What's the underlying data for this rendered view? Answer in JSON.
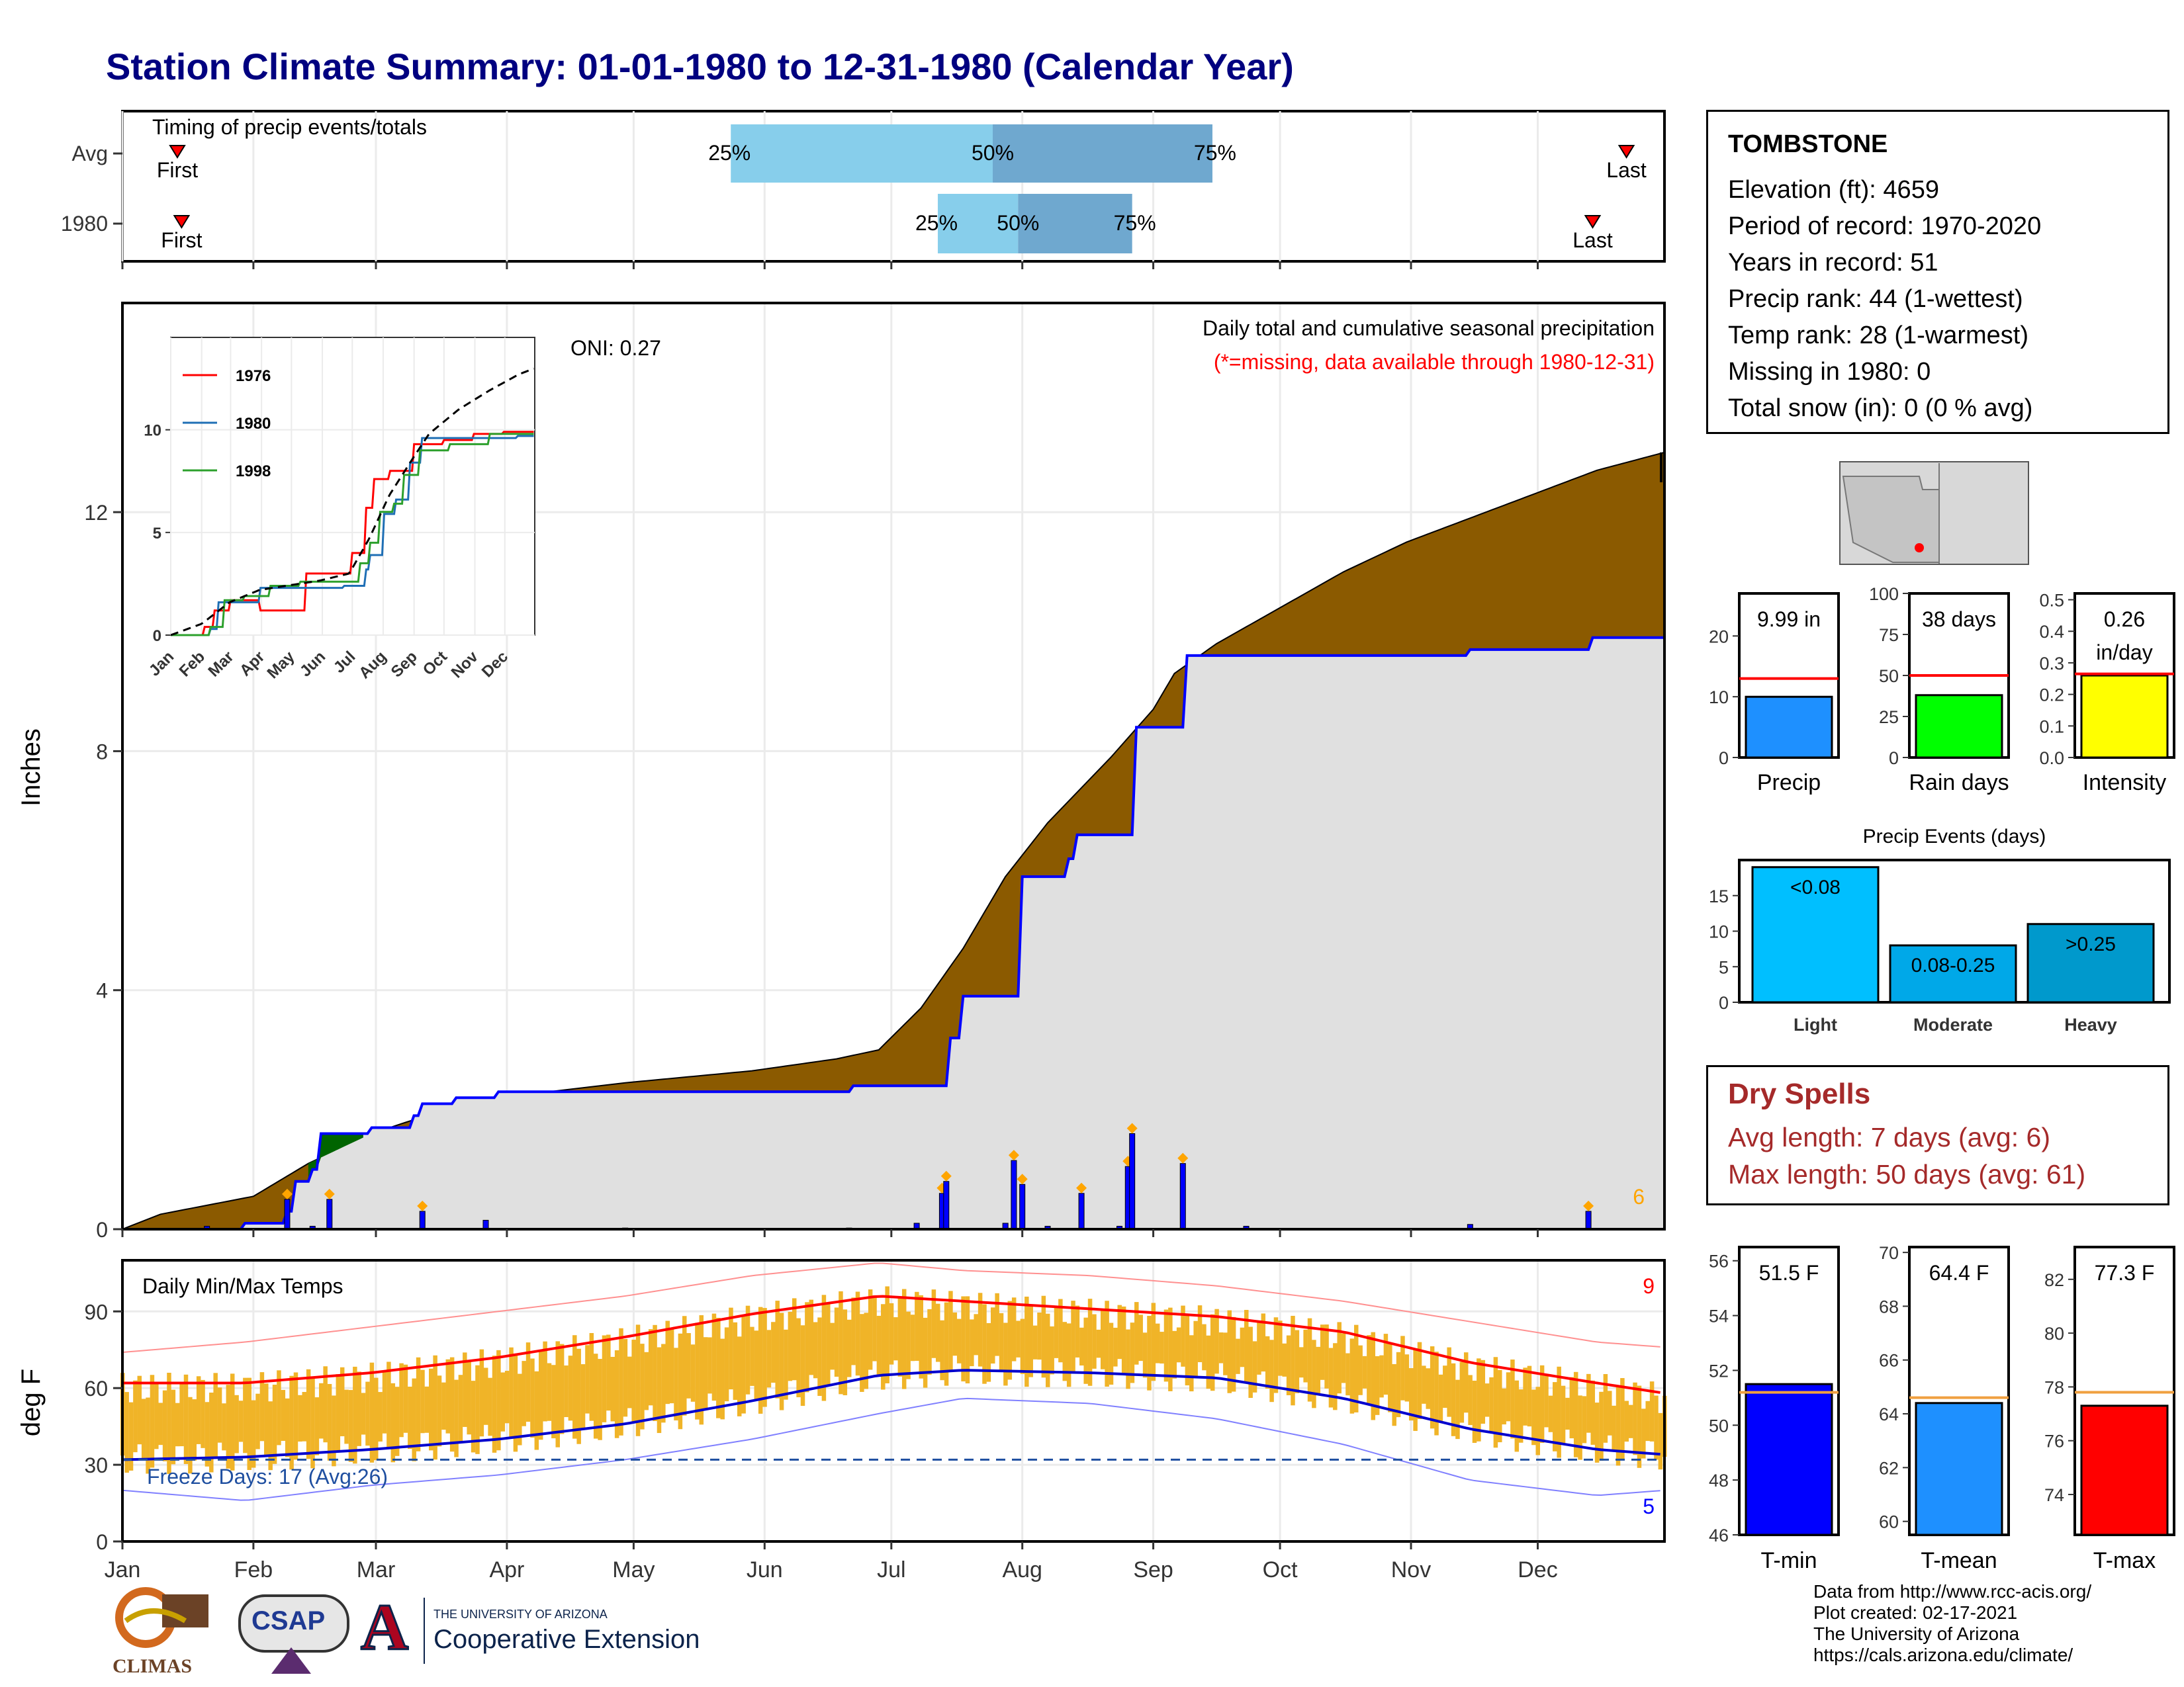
{
  "title": "Station Climate Summary: 01-01-1980 to 12-31-1980 (Calendar Year)",
  "station": {
    "name": "TOMBSTONE",
    "lines": [
      "Elevation (ft): 4659",
      "Period of record: 1970-2020",
      "Years in record: 51",
      "Precip rank: 44 (1-wettest)",
      "Temp rank: 28 (1-warmest)",
      "Missing in 1980: 0",
      "Total snow (in): 0 (0 % avg)"
    ]
  },
  "dry_spells": {
    "title": "Dry Spells",
    "avg": "Avg length: 7 days (avg: 6)",
    "max": "Max length: 50 days (avg: 61)"
  },
  "credits": [
    "Data from http://www.rcc-acis.org/",
    "Plot created: 02-17-2021",
    "The University of Arizona",
    "https://cals.arizona.edu/climate/"
  ],
  "logos": {
    "climas": "CLIMAS",
    "csap": "CSAP",
    "ua_small": "THE UNIVERSITY OF ARIZONA",
    "ua_big": "Cooperative Extension"
  },
  "colors": {
    "title": "#000080",
    "precip_fill": "#8b5a00",
    "below_avg_fill": "#006400",
    "observed_fill": "#e0e0e0",
    "observed_line": "#0000ff",
    "daily_bars": "#0000ff",
    "timing_light": "#87ceeb",
    "timing_dark": "#6fa8cf",
    "temp_range": "#f0b428",
    "tmax_line": "#ff0000",
    "tmin_line": "#0000cd",
    "dry_spells": "#a52a2a"
  },
  "chart_data": [
    {
      "type": "bar",
      "id": "timing",
      "title": "Timing of precip events/totals",
      "categories": [
        "Avg",
        "1980"
      ],
      "x_axis": "day of year",
      "xlim": [
        1,
        366
      ],
      "rows": [
        {
          "label": "Avg",
          "first": 14,
          "p25": 145,
          "p50": 207,
          "p75": 259,
          "last": 357,
          "first_label": "First",
          "last_label": "Last",
          "p25_label": "25%",
          "p50_label": "50%",
          "p75_label": "75%"
        },
        {
          "label": "1980",
          "first": 15,
          "p25": 194,
          "p50": 213,
          "p75": 240,
          "last": 349,
          "first_label": "First",
          "last_label": "Last",
          "p25_label": "25%",
          "p50_label": "50%",
          "p75_label": "75%"
        }
      ]
    },
    {
      "type": "area",
      "id": "cumulative-precip",
      "title": "Daily total and cumulative seasonal precipitation",
      "subtitle": "(*=missing, data available through 1980-12-31)",
      "oni_label": "ONI: 0.27",
      "ylabel": "Inches",
      "ylim": [
        0,
        15.5
      ],
      "yticks": [
        0,
        4,
        8,
        12
      ],
      "x_axis": "day of year",
      "xlim": [
        1,
        366
      ],
      "xticks": [
        "Jan",
        "Feb",
        "Mar",
        "Apr",
        "May",
        "Jun",
        "Jul",
        "Aug",
        "Sep",
        "Oct",
        "Nov",
        "Dec"
      ],
      "count_label": "6",
      "series": [
        {
          "name": "average cumulative",
          "points": [
            [
              1,
              0
            ],
            [
              10,
              0.25
            ],
            [
              32,
              0.55
            ],
            [
              45,
              1.1
            ],
            [
              60,
              1.6
            ],
            [
              75,
              1.95
            ],
            [
              90,
              2.2
            ],
            [
              120,
              2.45
            ],
            [
              150,
              2.65
            ],
            [
              170,
              2.85
            ],
            [
              180,
              3.0
            ],
            [
              190,
              3.7
            ],
            [
              200,
              4.7
            ],
            [
              210,
              5.9
            ],
            [
              220,
              6.8
            ],
            [
              235,
              7.9
            ],
            [
              245,
              8.7
            ],
            [
              250,
              9.3
            ],
            [
              260,
              9.8
            ],
            [
              275,
              10.4
            ],
            [
              290,
              11.0
            ],
            [
              305,
              11.5
            ],
            [
              320,
              11.9
            ],
            [
              335,
              12.3
            ],
            [
              350,
              12.7
            ],
            [
              366,
              13.0
            ]
          ]
        },
        {
          "name": "1980",
          "points": [
            [
              1,
              0
            ],
            [
              30,
              0.1
            ],
            [
              40,
              0.3
            ],
            [
              42,
              0.8
            ],
            [
              46,
              1.0
            ],
            [
              48,
              1.6
            ],
            [
              60,
              1.7
            ],
            [
              70,
              1.9
            ],
            [
              72,
              2.1
            ],
            [
              80,
              2.2
            ],
            [
              90,
              2.3
            ],
            [
              120,
              2.3
            ],
            [
              150,
              2.3
            ],
            [
              170,
              2.3
            ],
            [
              174,
              2.4
            ],
            [
              195,
              2.4
            ],
            [
              197,
              3.2
            ],
            [
              200,
              3.9
            ],
            [
              212,
              3.9
            ],
            [
              214,
              5.9
            ],
            [
              225,
              6.2
            ],
            [
              227,
              6.6
            ],
            [
              239,
              6.6
            ],
            [
              241,
              8.4
            ],
            [
              252,
              8.4
            ],
            [
              253,
              9.6
            ],
            [
              320,
              9.7
            ],
            [
              348,
              9.7
            ],
            [
              349,
              9.9
            ],
            [
              366,
              9.9
            ]
          ]
        }
      ],
      "daily_values": [
        [
          21,
          0.05
        ],
        [
          40,
          0.5
        ],
        [
          46,
          0.05
        ],
        [
          50,
          0.5
        ],
        [
          72,
          0.3
        ],
        [
          87,
          0.15
        ],
        [
          120,
          0.02
        ],
        [
          173,
          0.02
        ],
        [
          189,
          0.1
        ],
        [
          195,
          0.6
        ],
        [
          196,
          0.8
        ],
        [
          210,
          0.1
        ],
        [
          212,
          1.15
        ],
        [
          214,
          0.75
        ],
        [
          220,
          0.05
        ],
        [
          228,
          0.6
        ],
        [
          237,
          0.05
        ],
        [
          239,
          1.05
        ],
        [
          240,
          1.6
        ],
        [
          252,
          1.1
        ],
        [
          267,
          0.05
        ],
        [
          320,
          0.08
        ],
        [
          348,
          0.3
        ]
      ]
    },
    {
      "type": "line",
      "id": "inset-cumulative",
      "yticks": [
        0,
        5,
        10
      ],
      "xticks": [
        "Jan",
        "Feb",
        "Mar",
        "Apr",
        "May",
        "Jun",
        "Jul",
        "Aug",
        "Sep",
        "Oct",
        "Nov",
        "Dec"
      ],
      "series": [
        {
          "name": "1976",
          "color": "#ff0000",
          "points": [
            [
              1,
              0
            ],
            [
              35,
              0.4
            ],
            [
              45,
              1.2
            ],
            [
              60,
              1.7
            ],
            [
              90,
              1.8
            ],
            [
              91,
              1.2
            ],
            [
              135,
              1.2
            ],
            [
              136,
              3.0
            ],
            [
              180,
              3.0
            ],
            [
              182,
              4.0
            ],
            [
              197,
              6.2
            ],
            [
              205,
              7.6
            ],
            [
              220,
              8.0
            ],
            [
              245,
              9.3
            ],
            [
              275,
              9.5
            ],
            [
              305,
              9.8
            ],
            [
              335,
              9.9
            ],
            [
              366,
              10.0
            ]
          ]
        },
        {
          "name": "1980",
          "color": "#1f6fb5",
          "points": [
            [
              1,
              0
            ],
            [
              40,
              0.3
            ],
            [
              48,
              1.6
            ],
            [
              90,
              2.3
            ],
            [
              174,
              2.4
            ],
            [
              197,
              3.2
            ],
            [
              200,
              3.9
            ],
            [
              214,
              5.9
            ],
            [
              227,
              6.6
            ],
            [
              241,
              8.4
            ],
            [
              253,
              9.6
            ],
            [
              348,
              9.7
            ],
            [
              366,
              9.9
            ]
          ]
        },
        {
          "name": "1998",
          "color": "#2ca02c",
          "points": [
            [
              1,
              0
            ],
            [
              40,
              0.4
            ],
            [
              55,
              1.7
            ],
            [
              75,
              1.9
            ],
            [
              100,
              2.4
            ],
            [
              130,
              2.6
            ],
            [
              160,
              2.6
            ],
            [
              190,
              3.5
            ],
            [
              200,
              4.5
            ],
            [
              210,
              6.0
            ],
            [
              225,
              6.4
            ],
            [
              235,
              7.8
            ],
            [
              250,
              9.0
            ],
            [
              280,
              9.3
            ],
            [
              320,
              9.8
            ],
            [
              366,
              10.1
            ]
          ]
        },
        {
          "name": "average",
          "color": "#000000",
          "dashed": true,
          "points": [
            [
              1,
              0
            ],
            [
              32,
              0.55
            ],
            [
              60,
              1.6
            ],
            [
              90,
              2.2
            ],
            [
              150,
              2.65
            ],
            [
              180,
              3.0
            ],
            [
              200,
              4.7
            ],
            [
              220,
              6.8
            ],
            [
              245,
              8.7
            ],
            [
              260,
              9.8
            ],
            [
              290,
              11.0
            ],
            [
              320,
              11.9
            ],
            [
              350,
              12.7
            ],
            [
              366,
              13.0
            ]
          ]
        }
      ]
    },
    {
      "type": "line",
      "id": "daily-temps",
      "title": "Daily Min/Max Temps",
      "freeze_label": "Freeze Days: 17 (Avg:26)",
      "ylabel": "deg F",
      "ylim": [
        0,
        110
      ],
      "yticks": [
        0,
        30,
        60,
        90
      ],
      "xticks": [
        "Jan",
        "Feb",
        "Mar",
        "Apr",
        "May",
        "Jun",
        "Jul",
        "Aug",
        "Sep",
        "Oct",
        "Nov",
        "Dec"
      ],
      "record_high_count": "9",
      "record_low_count": "5",
      "series": [
        {
          "name": "avg max",
          "points": [
            [
              1,
              62
            ],
            [
              30,
              62
            ],
            [
              60,
              66
            ],
            [
              90,
              72
            ],
            [
              120,
              80
            ],
            [
              150,
              89
            ],
            [
              180,
              96
            ],
            [
              200,
              94
            ],
            [
              230,
              91
            ],
            [
              260,
              88
            ],
            [
              290,
              82
            ],
            [
              320,
              70
            ],
            [
              350,
              62
            ],
            [
              366,
              58
            ]
          ]
        },
        {
          "name": "avg min",
          "points": [
            [
              1,
              32
            ],
            [
              30,
              33
            ],
            [
              60,
              36
            ],
            [
              90,
              40
            ],
            [
              120,
              46
            ],
            [
              150,
              55
            ],
            [
              180,
              65
            ],
            [
              200,
              67
            ],
            [
              230,
              66
            ],
            [
              260,
              64
            ],
            [
              290,
              56
            ],
            [
              320,
              44
            ],
            [
              350,
              36
            ],
            [
              366,
              34
            ]
          ]
        },
        {
          "name": "record max",
          "points": [
            [
              1,
              74
            ],
            [
              30,
              78
            ],
            [
              60,
              84
            ],
            [
              90,
              90
            ],
            [
              120,
              96
            ],
            [
              150,
              104
            ],
            [
              180,
              109
            ],
            [
              200,
              106
            ],
            [
              230,
              104
            ],
            [
              260,
              100
            ],
            [
              290,
              94
            ],
            [
              320,
              86
            ],
            [
              350,
              78
            ],
            [
              366,
              76
            ]
          ]
        },
        {
          "name": "record min",
          "points": [
            [
              1,
              20
            ],
            [
              30,
              16
            ],
            [
              60,
              22
            ],
            [
              90,
              26
            ],
            [
              120,
              32
            ],
            [
              150,
              40
            ],
            [
              180,
              50
            ],
            [
              200,
              56
            ],
            [
              230,
              54
            ],
            [
              260,
              48
            ],
            [
              290,
              38
            ],
            [
              320,
              24
            ],
            [
              350,
              18
            ],
            [
              366,
              20
            ]
          ]
        }
      ],
      "freeze_line": 32
    },
    {
      "type": "bar",
      "id": "precip-total",
      "categories": [
        "Precip"
      ],
      "values": [
        9.99
      ],
      "value_label": "9.99 in",
      "avg": 13.0,
      "ylim": [
        0,
        27
      ],
      "yticks": [
        0,
        10,
        20
      ]
    },
    {
      "type": "bar",
      "id": "rain-days",
      "categories": [
        "Rain days"
      ],
      "values": [
        38
      ],
      "value_label": "38 days",
      "avg": 50,
      "ylim": [
        0,
        100
      ],
      "yticks": [
        0,
        25,
        50,
        75,
        100
      ]
    },
    {
      "type": "bar",
      "id": "intensity",
      "categories": [
        "Intensity"
      ],
      "values": [
        0.26
      ],
      "value_label": "0.26",
      "value_label2": "in/day",
      "avg": 0.265,
      "ylim": [
        0,
        0.52
      ],
      "yticks": [
        0.0,
        0.1,
        0.2,
        0.3,
        0.4,
        0.5
      ]
    },
    {
      "type": "bar",
      "id": "precip-events",
      "title": "Precip Events (days)",
      "categories": [
        "Light",
        "Moderate",
        "Heavy"
      ],
      "bar_labels": [
        "<0.08",
        "0.08-0.25",
        ">0.25"
      ],
      "values": [
        19,
        8,
        11
      ],
      "ylim": [
        0,
        20
      ],
      "yticks": [
        0,
        5,
        10,
        15
      ]
    },
    {
      "type": "bar",
      "id": "t-min",
      "categories": [
        "T-min"
      ],
      "values": [
        51.5
      ],
      "value_label": "51.5 F",
      "avg": 51.2,
      "ylim": [
        46,
        56.5
      ],
      "yticks": [
        46,
        48,
        50,
        52,
        54,
        56
      ]
    },
    {
      "type": "bar",
      "id": "t-mean",
      "categories": [
        "T-mean"
      ],
      "values": [
        64.4
      ],
      "value_label": "64.4 F",
      "avg": 64.6,
      "ylim": [
        59.5,
        70.2
      ],
      "yticks": [
        60,
        62,
        64,
        66,
        68,
        70
      ]
    },
    {
      "type": "bar",
      "id": "t-max",
      "categories": [
        "T-max"
      ],
      "values": [
        77.3
      ],
      "value_label": "77.3 F",
      "avg": 77.8,
      "ylim": [
        72.5,
        83.2
      ],
      "yticks": [
        74,
        76,
        78,
        80,
        82
      ]
    }
  ]
}
